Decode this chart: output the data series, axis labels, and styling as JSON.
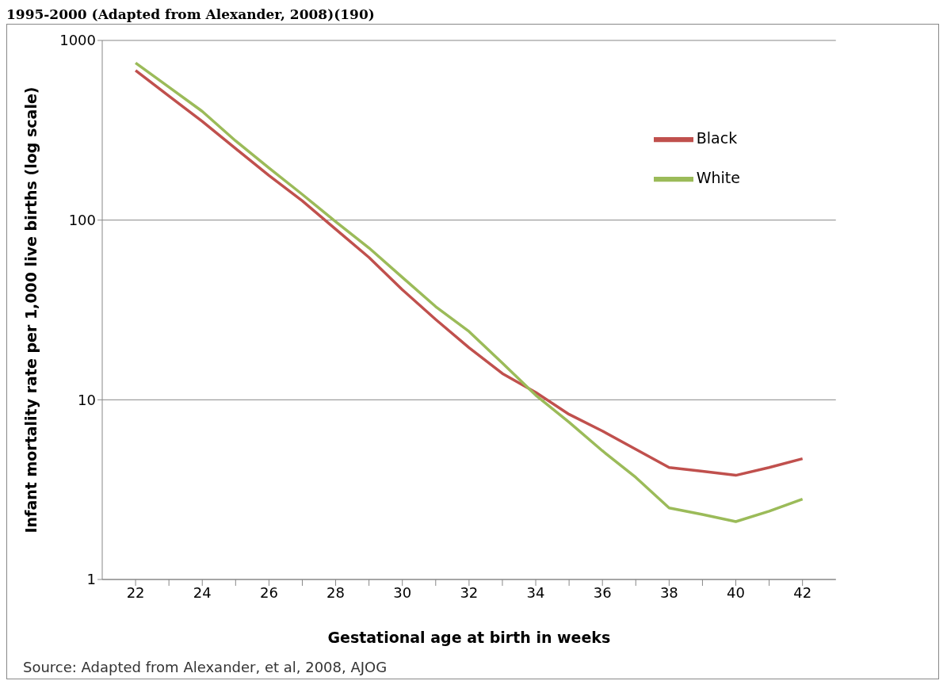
{
  "chart_data": {
    "type": "line",
    "title": "1995-2000 (Adapted from Alexander, 2008)(190)",
    "xlabel": "Gestational age at birth in weeks",
    "ylabel": "Infant mortality rate per 1,000 live births (log scale)",
    "annotations": [
      "Source: Adapted from Alexander, et al, 2008, AJOG"
    ],
    "x": [
      22,
      23,
      24,
      25,
      26,
      27,
      28,
      29,
      30,
      31,
      32,
      33,
      34,
      35,
      36,
      37,
      38,
      39,
      40,
      41,
      42
    ],
    "series": [
      {
        "name": "Black",
        "color": "#c0504d",
        "values": [
          680,
          490,
          354,
          250,
          177,
          128,
          89,
          62,
          41,
          28,
          19.5,
          14,
          11,
          8.3,
          6.7,
          5.3,
          4.2,
          4,
          3.8,
          4.2,
          4.7
        ]
      },
      {
        "name": "White",
        "color": "#9bbb59",
        "values": [
          750,
          550,
          403,
          276,
          195,
          139,
          98,
          70,
          48,
          33,
          24,
          16,
          10.6,
          7.5,
          5.2,
          3.7,
          2.5,
          2.3,
          2.1,
          2.4,
          2.8
        ]
      }
    ],
    "xlim": [
      21,
      43
    ],
    "xticks": [
      22,
      {
        "value": 23,
        "label": null
      },
      24,
      {
        "value": 25,
        "label": null
      },
      26,
      {
        "value": 27,
        "label": null
      },
      28,
      {
        "value": 29,
        "label": null
      },
      30,
      {
        "value": 31,
        "label": null
      },
      32,
      {
        "value": 33,
        "label": null
      },
      34,
      {
        "value": 35,
        "label": null
      },
      36,
      {
        "value": 37,
        "label": null
      },
      38,
      {
        "value": 39,
        "label": null
      },
      40,
      {
        "value": 41,
        "label": null
      },
      42
    ],
    "ylim": [
      1,
      1000
    ],
    "yticks": [
      1,
      10,
      100,
      1000
    ],
    "log": "y",
    "grid": "y",
    "legend": "top right",
    "marker": "none",
    "line_style": "solid"
  }
}
